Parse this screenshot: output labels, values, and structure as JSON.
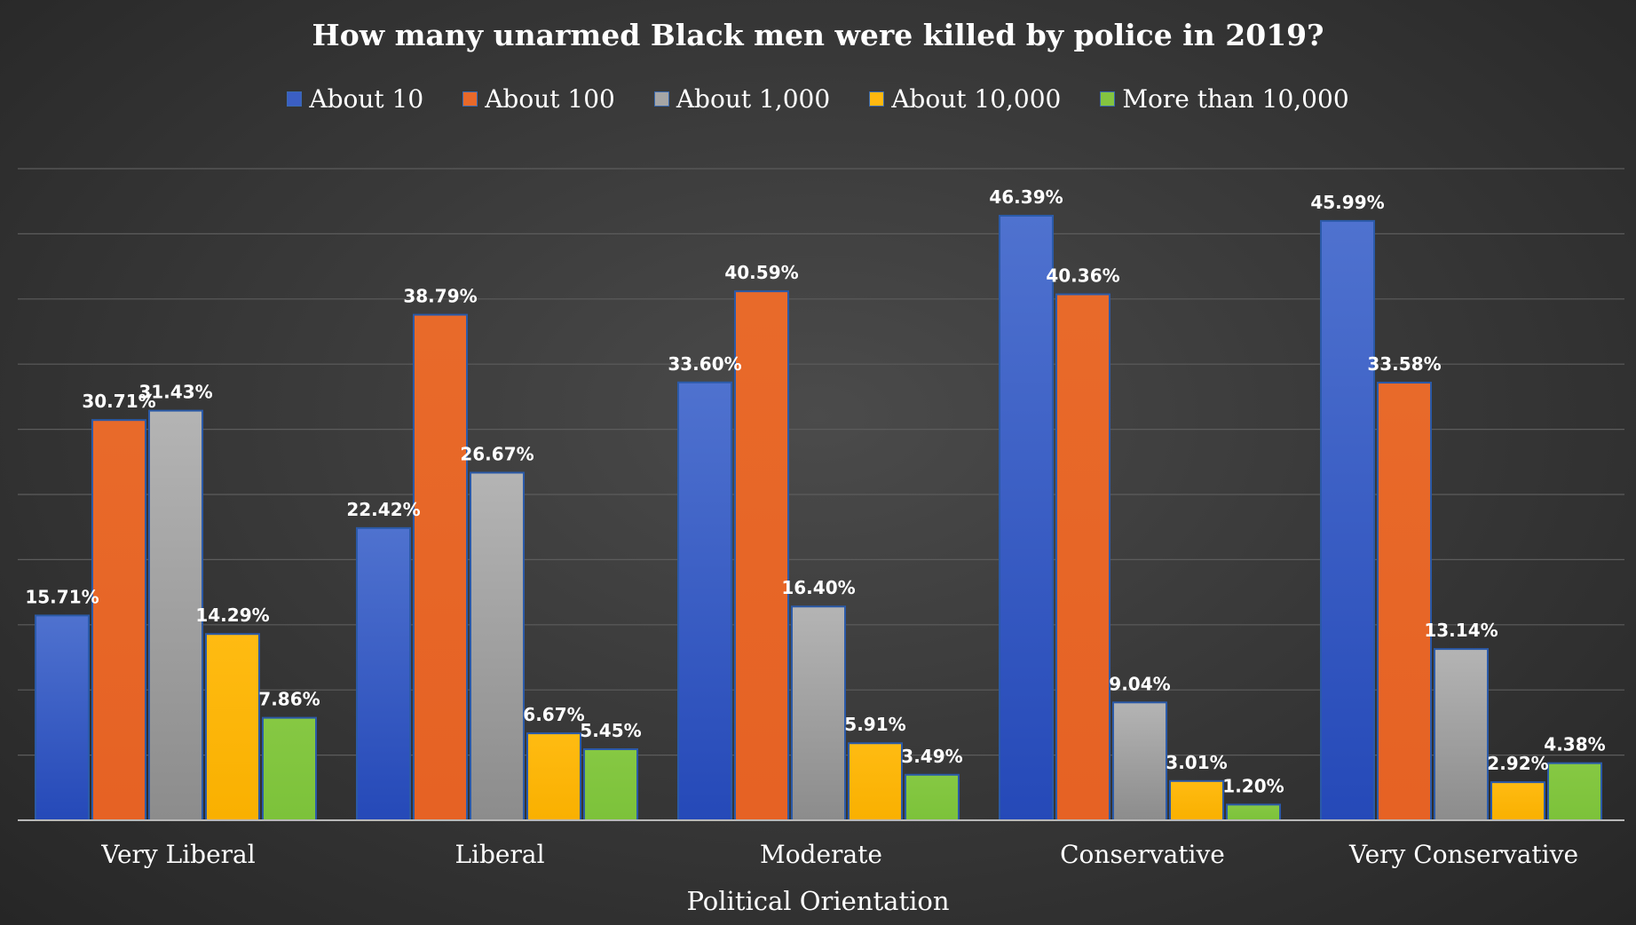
{
  "chart_data": {
    "type": "bar",
    "title": "How many unarmed Black men were killed by police in 2019?",
    "xlabel": "Political Orientation",
    "ylabel": "",
    "ylim": [
      0,
      50
    ],
    "grid": true,
    "legend_position": "top",
    "categories": [
      "Very Liberal",
      "Liberal",
      "Moderate",
      "Conservative",
      "Very Conservative"
    ],
    "series": [
      {
        "name": "About 10",
        "color": "#3b5fc4",
        "values": [
          15.71,
          22.42,
          33.6,
          46.39,
          45.99
        ],
        "labels": [
          "15.71%",
          "22.42%",
          "33.60%",
          "46.39%",
          "45.99%"
        ]
      },
      {
        "name": "About 100",
        "color": "#e8692a",
        "values": [
          30.71,
          38.79,
          40.59,
          40.36,
          33.58
        ],
        "labels": [
          "30.71%",
          "38.79%",
          "40.59%",
          "40.36%",
          "33.58%"
        ]
      },
      {
        "name": "About 1,000",
        "color": "#a6a6a6",
        "values": [
          31.43,
          26.67,
          16.4,
          9.04,
          13.14
        ],
        "labels": [
          "31.43%",
          "26.67%",
          "16.40%",
          "9.04%",
          "13.14%"
        ]
      },
      {
        "name": "About 10,000",
        "color": "#ffb80f",
        "values": [
          14.29,
          6.67,
          5.91,
          3.01,
          2.92
        ],
        "labels": [
          "14.29%",
          "6.67%",
          "5.91%",
          "3.01%",
          "2.92%"
        ]
      },
      {
        "name": "More than 10,000",
        "color": "#84c440",
        "values": [
          7.86,
          5.45,
          3.49,
          1.2,
          4.38
        ],
        "labels": [
          "7.86%",
          "5.45%",
          "3.49%",
          "1.20%",
          "4.38%"
        ]
      }
    ]
  }
}
